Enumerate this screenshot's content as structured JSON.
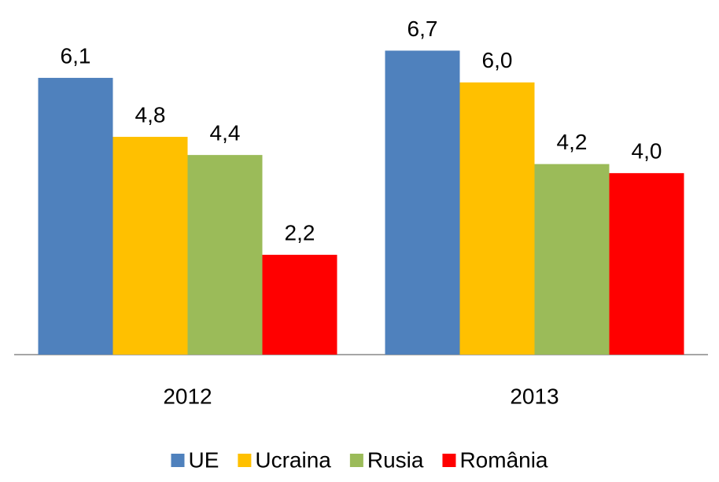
{
  "chart_data": {
    "type": "bar",
    "categories": [
      "2012",
      "2013"
    ],
    "series": [
      {
        "name": "UE",
        "color": "#4f81bd",
        "values": [
          6.1,
          6.7
        ],
        "value_labels": [
          "6,1",
          "6,7"
        ]
      },
      {
        "name": "Ucraina",
        "color": "#ffc000",
        "values": [
          4.8,
          6.0
        ],
        "value_labels": [
          "4,8",
          "6,0"
        ]
      },
      {
        "name": "Rusia",
        "color": "#9bbb59",
        "values": [
          4.4,
          4.2
        ],
        "value_labels": [
          "4,4",
          "4,2"
        ]
      },
      {
        "name": "România",
        "color": "#ff0000",
        "values": [
          2.2,
          4.0
        ],
        "value_labels": [
          "2,2",
          "4,0"
        ]
      }
    ],
    "legend": "bottom"
  }
}
